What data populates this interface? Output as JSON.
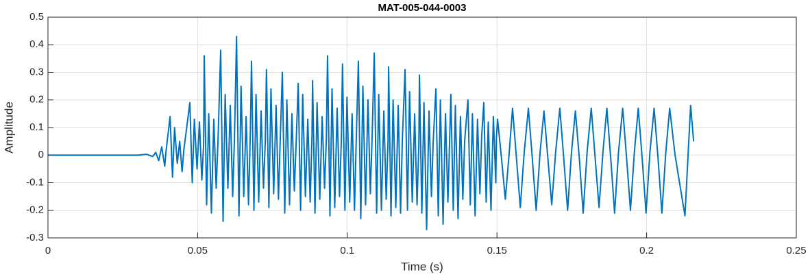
{
  "chart_data": {
    "type": "line",
    "title": "MAT-005-044-0003",
    "x_label": "Time (s)",
    "y_label": "Amplitude",
    "color": "#0072bd",
    "grid": true,
    "xlim": [
      0,
      0.25
    ],
    "xticks": [
      0,
      0.05,
      0.1,
      0.15,
      0.2,
      0.25
    ],
    "ylim": [
      -0.3,
      0.5
    ],
    "yticks": [
      -0.3,
      -0.2,
      -0.1,
      0,
      0.1,
      0.2,
      0.3,
      0.4,
      0.5
    ],
    "x": [
      0,
      0.03,
      0.033,
      0.035,
      0.036,
      0.037,
      0.038,
      0.039,
      0.0395,
      0.0408,
      0.0416,
      0.0423,
      0.0432,
      0.044,
      0.0448,
      0.0454,
      0.0474,
      0.0482,
      0.0489,
      0.0498,
      0.0506,
      0.0514,
      0.052,
      0.0522,
      0.053,
      0.0537,
      0.0546,
      0.0554,
      0.0562,
      0.0568,
      0.0577,
      0.0585,
      0.0592,
      0.0601,
      0.0609,
      0.0617,
      0.0623,
      0.063,
      0.0638,
      0.0645,
      0.0654,
      0.0662,
      0.067,
      0.0676,
      0.068,
      0.0688,
      0.0695,
      0.0704,
      0.0712,
      0.072,
      0.0726,
      0.073,
      0.0738,
      0.0745,
      0.0754,
      0.0762,
      0.077,
      0.0776,
      0.0783,
      0.0791,
      0.0798,
      0.0807,
      0.0815,
      0.0823,
      0.0829,
      0.0836,
      0.0844,
      0.0851,
      0.086,
      0.0868,
      0.0876,
      0.0882,
      0.0884,
      0.0892,
      0.0899,
      0.0908,
      0.0916,
      0.0924,
      0.093,
      0.0934,
      0.0942,
      0.0949,
      0.0958,
      0.0966,
      0.0974,
      0.098,
      0.0984,
      0.0992,
      0.0999,
      0.1008,
      0.1016,
      0.1024,
      0.103,
      0.1037,
      0.1045,
      0.1052,
      0.1061,
      0.1069,
      0.1077,
      0.1083,
      0.109,
      0.1098,
      0.1105,
      0.1114,
      0.1122,
      0.113,
      0.1136,
      0.1138,
      0.1146,
      0.1153,
      0.1162,
      0.117,
      0.1178,
      0.1184,
      0.1193,
      0.1201,
      0.1208,
      0.1217,
      0.1225,
      0.1233,
      0.1239,
      0.1241,
      0.1249,
      0.1256,
      0.1265,
      0.1273,
      0.1281,
      0.1287,
      0.1296,
      0.1304,
      0.1311,
      0.132,
      0.1328,
      0.1336,
      0.1342,
      0.1346,
      0.1354,
      0.1361,
      0.137,
      0.1378,
      0.1386,
      0.1392,
      0.1403,
      0.1411,
      0.1418,
      0.1427,
      0.1435,
      0.1443,
      0.1449,
      0.1456,
      0.1464,
      0.1471,
      0.148,
      0.1488,
      0.1496,
      0.1498,
      0.1502,
      0.1515,
      0.1528,
      0.1541,
      0.1552,
      0.1565,
      0.1578,
      0.1591,
      0.1605,
      0.1618,
      0.1631,
      0.1644,
      0.1657,
      0.167,
      0.1683,
      0.1696,
      0.171,
      0.1723,
      0.1736,
      0.1749,
      0.1762,
      0.1775,
      0.1788,
      0.1801,
      0.1815,
      0.1828,
      0.1841,
      0.1854,
      0.1867,
      0.188,
      0.1893,
      0.1906,
      0.192,
      0.1933,
      0.1946,
      0.1959,
      0.1972,
      0.1985,
      0.1998,
      0.2011,
      0.2025,
      0.2038,
      0.2051,
      0.2064,
      0.2077,
      0.2095,
      0.2128,
      0.2147,
      0.2157
    ],
    "values": [
      0,
      0,
      0.003,
      -0.005,
      0.01,
      -0.02,
      0.03,
      -0.04,
      0.02,
      0.14,
      -0.08,
      0.1,
      -0.03,
      0.05,
      -0.06,
      0.02,
      0.19,
      -0.1,
      0.13,
      -0.05,
      0.12,
      -0.09,
      0.04,
      0.36,
      -0.18,
      0.15,
      -0.21,
      0.13,
      -0.12,
      0.05,
      0.38,
      -0.24,
      0.22,
      -0.12,
      0.18,
      -0.15,
      0.06,
      0.43,
      -0.22,
      0.25,
      -0.15,
      0.14,
      -0.18,
      0.08,
      0.34,
      -0.2,
      0.22,
      -0.17,
      0.16,
      -0.12,
      0.05,
      0.31,
      -0.19,
      0.24,
      -0.14,
      0.18,
      -0.16,
      0.06,
      0.3,
      -0.21,
      0.2,
      -0.18,
      0.15,
      -0.13,
      0.04,
      0.26,
      -0.2,
      0.22,
      -0.15,
      0.13,
      -0.17,
      0.07,
      0.27,
      -0.21,
      0.19,
      -0.16,
      0.14,
      -0.12,
      0.06,
      0.36,
      -0.22,
      0.24,
      -0.19,
      0.17,
      -0.15,
      0.05,
      0.33,
      -0.2,
      0.21,
      -0.17,
      0.15,
      -0.2,
      0.06,
      0.34,
      -0.23,
      0.25,
      -0.18,
      0.2,
      -0.14,
      0.07,
      0.37,
      -0.21,
      0.22,
      -0.2,
      0.16,
      -0.16,
      0.05,
      0.32,
      -0.22,
      0.2,
      -0.19,
      0.18,
      -0.21,
      0.06,
      0.31,
      -0.2,
      0.23,
      -0.17,
      0.15,
      -0.18,
      0.04,
      0.29,
      -0.21,
      0.19,
      -0.27,
      0.16,
      -0.15,
      0.05,
      0.24,
      -0.22,
      0.2,
      -0.25,
      0.15,
      -0.17,
      0.06,
      0.22,
      -0.2,
      0.18,
      -0.23,
      0.14,
      -0.16,
      0.05,
      0.2,
      -0.18,
      0.15,
      -0.22,
      0.13,
      -0.14,
      0.07,
      0.19,
      -0.17,
      0.12,
      -0.2,
      0.14,
      -0.1,
      0.06,
      0.13,
      -0.01,
      -0.16,
      0.01,
      0.17,
      -0.01,
      -0.19,
      0.01,
      0.17,
      -0.01,
      -0.2,
      0.01,
      0.16,
      -0.01,
      -0.18,
      0.01,
      0.17,
      -0.01,
      -0.2,
      0.01,
      0.16,
      -0.01,
      -0.21,
      0.01,
      0.17,
      -0.01,
      -0.19,
      0.01,
      0.17,
      -0.01,
      -0.21,
      0.01,
      0.17,
      -0.01,
      -0.2,
      0.01,
      0.17,
      -0.01,
      -0.21,
      0.01,
      0.17,
      -0.01,
      -0.21,
      0.01,
      0.17,
      0,
      -0.22,
      0.18,
      0.05
    ]
  }
}
